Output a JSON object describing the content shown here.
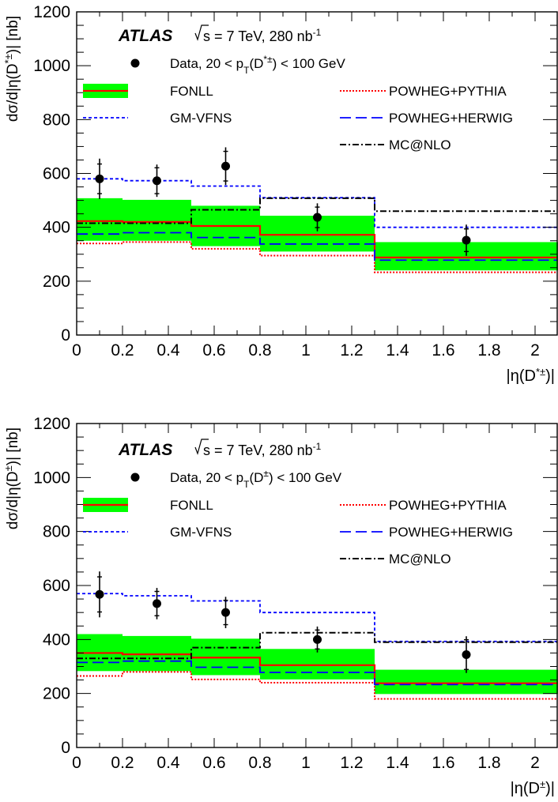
{
  "chart_data": [
    {
      "type": "step",
      "experiment": "ATLAS",
      "energy_text": "s = 7 TeV, 280 nb",
      "energy_sup": "-1",
      "ylabel": {
        "pre": "dσ/d|η(D",
        "sup": "*±",
        "post": ")| [nb]"
      },
      "xlabel": {
        "pre": "|η(D",
        "sup": "*±",
        "post": ")|"
      },
      "xlim": [
        0,
        2.1
      ],
      "ylim": [
        0,
        1200
      ],
      "xticks": [
        "0",
        "0.2",
        "0.4",
        "0.6",
        "0.8",
        "1",
        "1.2",
        "1.4",
        "1.6",
        "1.8",
        "2"
      ],
      "yticks": [
        "0",
        "200",
        "400",
        "600",
        "800",
        "1000",
        "1200"
      ],
      "bin_edges": [
        0,
        0.2,
        0.5,
        0.8,
        1.3,
        2.1
      ],
      "data": {
        "label": {
          "a": "Data,  20 < p",
          "sub": "T",
          "b": "(D",
          "sup": "*±",
          "c": ") < 100 GeV"
        },
        "x": [
          0.1,
          0.35,
          0.65,
          1.05,
          1.7
        ],
        "y": [
          580,
          573,
          627,
          437,
          352
        ],
        "err_stat": [
          55,
          48,
          55,
          38,
          42
        ],
        "err_tot": [
          75,
          60,
          70,
          52,
          58
        ]
      },
      "series": [
        {
          "name": "FONLL",
          "color": "#ff0000",
          "band_color": "#00ff00",
          "values": [
            423,
            420,
            405,
            372,
            288
          ],
          "band_low": [
            350,
            350,
            330,
            310,
            240
          ],
          "band_high": [
            508,
            502,
            480,
            443,
            345
          ]
        },
        {
          "name": "POWHEG+PYTHIA",
          "color": "#ff0000",
          "values": [
            340,
            345,
            320,
            295,
            233
          ]
        },
        {
          "name": "GM-VFNS",
          "color": "#0000ff",
          "values": [
            580,
            573,
            553,
            510,
            400
          ]
        },
        {
          "name": "POWHEG+HERWIG",
          "color": "#0000ff",
          "values": [
            375,
            380,
            362,
            338,
            278
          ]
        },
        {
          "name": "MC@NLO",
          "color": "#000000",
          "values": [
            415,
            415,
            465,
            508,
            460
          ]
        }
      ]
    },
    {
      "type": "step",
      "experiment": "ATLAS",
      "energy_text": "s = 7 TeV, 280 nb",
      "energy_sup": "-1",
      "ylabel": {
        "pre": "dσ/d|η(D",
        "sup": "±",
        "post": ")| [nb]"
      },
      "xlabel": {
        "pre": "|η(D",
        "sup": "±",
        "post": ")|"
      },
      "xlim": [
        0,
        2.1
      ],
      "ylim": [
        0,
        1200
      ],
      "xticks": [
        "0",
        "0.2",
        "0.4",
        "0.6",
        "0.8",
        "1",
        "1.2",
        "1.4",
        "1.6",
        "1.8",
        "2"
      ],
      "yticks": [
        "0",
        "200",
        "400",
        "600",
        "800",
        "1000",
        "1200"
      ],
      "bin_edges": [
        0,
        0.2,
        0.5,
        0.8,
        1.3,
        2.1
      ],
      "data": {
        "label": {
          "a": "Data,  20 < p",
          "sub": "T",
          "b": "(D",
          "sup": "±",
          "c": ") < 100 GeV"
        },
        "x": [
          0.1,
          0.35,
          0.65,
          1.05,
          1.7
        ],
        "y": [
          567,
          533,
          500,
          400,
          344
        ],
        "err_stat": [
          65,
          45,
          45,
          35,
          55
        ],
        "err_tot": [
          85,
          58,
          58,
          48,
          68
        ]
      },
      "series": [
        {
          "name": "FONLL",
          "color": "#ff0000",
          "band_color": "#00ff00",
          "values": [
            350,
            345,
            333,
            305,
            238
          ],
          "band_low": [
            283,
            283,
            268,
            252,
            198
          ],
          "band_high": [
            420,
            413,
            403,
            365,
            288
          ]
        },
        {
          "name": "POWHEG+PYTHIA",
          "color": "#ff0000",
          "values": [
            265,
            280,
            252,
            240,
            180
          ]
        },
        {
          "name": "GM-VFNS",
          "color": "#0000ff",
          "values": [
            570,
            562,
            543,
            500,
            393
          ]
        },
        {
          "name": "POWHEG+HERWIG",
          "color": "#0000ff",
          "values": [
            315,
            320,
            297,
            278,
            233
          ]
        },
        {
          "name": "MC@NLO",
          "color": "#000000",
          "values": [
            330,
            330,
            370,
            425,
            390
          ]
        }
      ]
    }
  ]
}
